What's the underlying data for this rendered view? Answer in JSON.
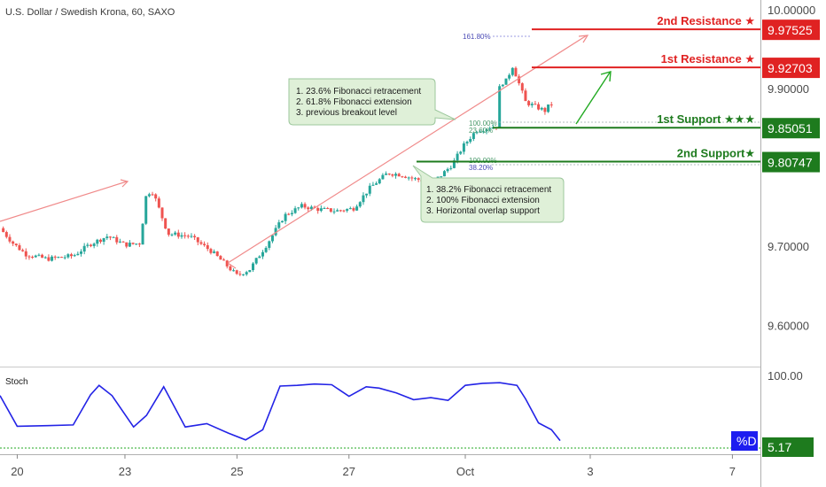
{
  "symbol_title": "U.S. Dollar / Swedish Krona, 60, SAXO",
  "colors": {
    "bull": "#26a69a",
    "bear": "#ef5350",
    "resistance": "#e02222",
    "support": "#1e7b1e",
    "trend": "#f08a8a",
    "stoch": "#2323e6",
    "arrow": "#22aa22",
    "note_bg": "#dff0d8",
    "note_border": "#9cc79c"
  },
  "levels": [
    {
      "id": "r2",
      "label": "2nd Resistance ★",
      "price": "9.97525",
      "value": 9.97525,
      "color": "#e02222"
    },
    {
      "id": "r1",
      "label": "1st Resistance ★",
      "price": "9.92703",
      "value": 9.92703,
      "color": "#e02222"
    },
    {
      "id": "s1",
      "label": "1st Support ★★★",
      "price": "9.85051",
      "value": 9.85051,
      "color": "#1e7b1e"
    },
    {
      "id": "s2",
      "label": "2nd Support★",
      "price": "9.80747",
      "value": 9.80747,
      "color": "#1e7b1e"
    }
  ],
  "fib_labels": {
    "ext_161": "161.80%",
    "ret_100": "100.00%",
    "ret_23": "23.60%",
    "ret_100b": "100.00%",
    "ret_38": "38.20%"
  },
  "notes": {
    "upper": [
      "1. 23.6% Fibonacci retracement",
      "2. 61.8% Fibonacci extension",
      "3. previous breakout level"
    ],
    "lower": [
      "1. 38.2% Fibonacci retracement",
      "2. 100% Fibonacci extension",
      "3. Horizontal overlap support"
    ]
  },
  "stoch": {
    "label": "Stoch",
    "axis_top": "100.00",
    "current": "5.17",
    "badge": "%D"
  },
  "chart_data": {
    "type": "candlestick",
    "title": "U.S. Dollar / Swedish Krona, 60, SAXO",
    "y_ticks": [
      "10.00000",
      "9.90000",
      "9.70000",
      "9.60000"
    ],
    "y_tick_values": [
      10.0,
      9.9,
      9.7,
      9.6
    ],
    "ylim": [
      9.5475,
      10.0125
    ],
    "x_ticks": [
      "20",
      "23",
      "25",
      "27",
      "Oct",
      "3",
      "7"
    ],
    "x_tick_values": [
      -1.3,
      1.2,
      3.8,
      6.4,
      9.1,
      12.0,
      15.3
    ],
    "xlim": [
      -1.7,
      15.95
    ],
    "series": [
      {
        "type": "candle_path",
        "x": [
          -1.7,
          -1.4,
          -1.1,
          -0.6,
          0.0,
          0.4,
          0.8,
          1.2,
          1.55,
          1.7,
          1.85,
          2.2,
          2.7,
          3.2,
          3.5,
          3.8,
          4.1,
          4.5,
          4.9,
          5.3,
          5.7,
          6.1,
          6.5,
          6.9,
          7.3,
          7.6,
          7.9,
          8.3,
          8.5,
          8.8,
          9.05,
          9.35,
          9.6,
          9.85,
          9.9,
          10.05,
          10.2,
          10.35,
          10.5,
          10.7,
          10.95,
          11.05,
          11.1
        ],
        "y": [
          9.723,
          9.704,
          9.69,
          9.684,
          9.688,
          9.703,
          9.713,
          9.702,
          9.704,
          9.768,
          9.769,
          9.716,
          9.713,
          9.694,
          9.679,
          9.663,
          9.671,
          9.703,
          9.739,
          9.751,
          9.747,
          9.745,
          9.748,
          9.775,
          9.793,
          9.791,
          9.786,
          9.781,
          9.788,
          9.804,
          9.827,
          9.847,
          9.85,
          9.853,
          9.906,
          9.91,
          9.929,
          9.906,
          9.883,
          9.878,
          9.872,
          9.879,
          9.881
        ]
      },
      {
        "name": "Stoch %D",
        "x": [
          -1.7,
          -1.3,
          -0.6,
          0.0,
          0.4,
          0.6,
          0.9,
          1.4,
          1.7,
          2.1,
          2.6,
          3.1,
          3.6,
          4.0,
          4.4,
          4.8,
          5.2,
          5.6,
          6.0,
          6.4,
          6.8,
          7.1,
          7.5,
          7.9,
          8.3,
          8.7,
          9.1,
          9.5,
          9.9,
          10.3,
          10.5,
          10.8,
          11.1,
          11.3
        ],
        "y": [
          73,
          28,
          29,
          30,
          74,
          88,
          73,
          27,
          44,
          86,
          27,
          32,
          18,
          8,
          23,
          87,
          88,
          90,
          89,
          72,
          86,
          84,
          77,
          67,
          70,
          66,
          88,
          91,
          92,
          88,
          68,
          33,
          23,
          7
        ]
      }
    ],
    "stoch_ylim": [
      0,
      100
    ],
    "stoch_level": 5.17
  }
}
